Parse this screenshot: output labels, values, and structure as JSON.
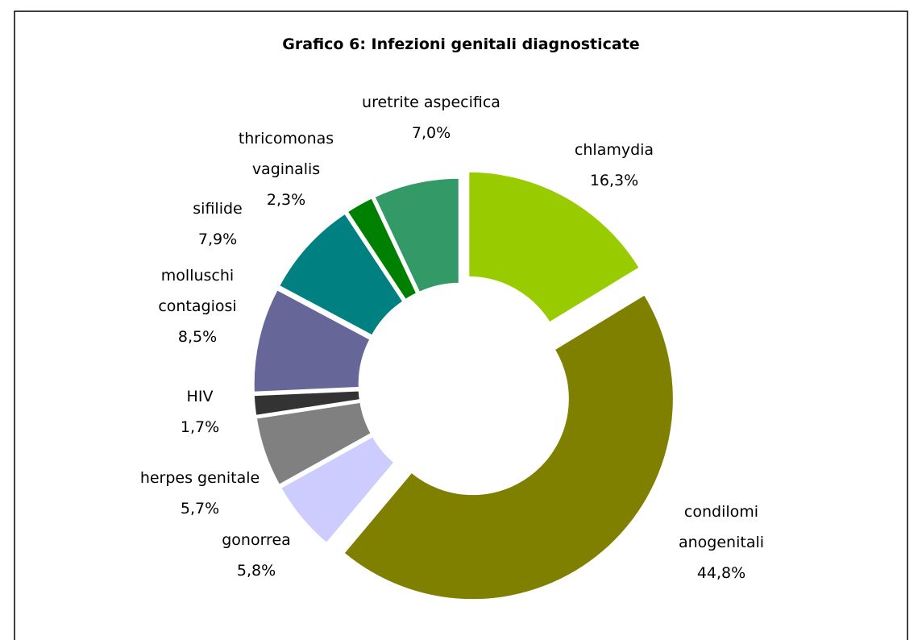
{
  "chart_data": {
    "type": "pie",
    "donut": true,
    "title": "Grafico 6: Infezioni genitali diagnosticate",
    "categories": [
      "chlamydia",
      "condilomi anogenitali",
      "gonorrea",
      "herpes genitale",
      "HIV",
      "molluschi contagiosi",
      "sifilide",
      "thricomonas vaginalis",
      "uretrite aspecifica"
    ],
    "values": [
      16.3,
      44.8,
      5.8,
      5.7,
      1.7,
      8.5,
      7.9,
      2.3,
      7.0
    ],
    "value_labels": [
      "16,3%",
      "44,8%",
      "5,8%",
      "5,7%",
      "1,7%",
      "8,5%",
      "7,9%",
      "2,3%",
      "7,0%"
    ],
    "colors": [
      "#99cc00",
      "#808000",
      "#ccccff",
      "#808080",
      "#333333",
      "#666699",
      "#008080",
      "#008000",
      "#339966"
    ]
  }
}
